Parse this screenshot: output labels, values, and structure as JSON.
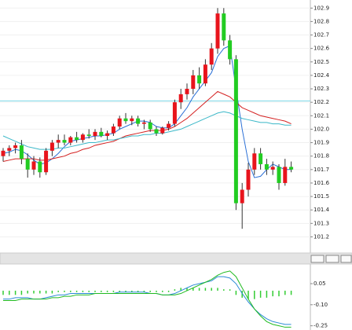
{
  "chart_data": [
    {
      "type": "candlestick",
      "up_color": "#e8141c",
      "down_color": "#22cc22",
      "wick_color": "#333333",
      "ylim": [
        101.08,
        102.96
      ],
      "yticks": [
        102.9,
        102.8,
        102.7,
        102.6,
        102.5,
        102.4,
        102.3,
        102.2,
        102.1,
        {
          "value": 102,
          "label": "102.0"
        },
        101.9,
        101.8,
        101.7,
        101.6,
        101.5,
        101.4,
        101.3,
        101.2
      ],
      "grid": true,
      "hline": {
        "value": 102.21,
        "color": "#7fd8e8"
      },
      "open": [
        101.8,
        101.84,
        101.86,
        101.88,
        101.78,
        101.7,
        101.76,
        101.68,
        101.84,
        101.9,
        101.92,
        101.9,
        101.94,
        101.92,
        101.96,
        101.95,
        101.98,
        101.95,
        101.97,
        102.02,
        102.08,
        102.06,
        102.08,
        102.04,
        102.05,
        102.0,
        101.97,
        102.01,
        102.04,
        102.2,
        102.26,
        102.3,
        102.4,
        102.34,
        102.48,
        102.6,
        102.86,
        102.66,
        102.52,
        101.45,
        101.55,
        101.7,
        101.82,
        101.74,
        101.7,
        101.72,
        101.6,
        101.72
      ],
      "high": [
        101.86,
        101.88,
        101.9,
        101.92,
        101.82,
        101.8,
        101.79,
        101.86,
        101.92,
        101.96,
        101.96,
        101.95,
        101.98,
        101.97,
        102.0,
        102.0,
        102.01,
        101.99,
        102.04,
        102.1,
        102.12,
        102.1,
        102.1,
        102.07,
        102.07,
        102.02,
        102.02,
        102.06,
        102.22,
        102.3,
        102.34,
        102.44,
        102.46,
        102.52,
        102.64,
        102.9,
        102.9,
        102.7,
        102.55,
        101.6,
        101.75,
        101.86,
        101.86,
        101.78,
        101.76,
        101.74,
        101.78,
        101.76
      ],
      "low": [
        101.76,
        101.8,
        101.82,
        101.74,
        101.64,
        101.66,
        101.64,
        101.66,
        101.8,
        101.86,
        101.88,
        101.88,
        101.9,
        101.9,
        101.93,
        101.92,
        101.94,
        101.92,
        101.95,
        102.0,
        102.04,
        102.03,
        102.02,
        102.0,
        101.98,
        101.95,
        101.96,
        101.99,
        102.02,
        102.15,
        102.22,
        102.26,
        102.3,
        102.32,
        102.44,
        102.56,
        102.62,
        102.48,
        101.4,
        101.26,
        101.5,
        101.66,
        101.7,
        101.66,
        101.66,
        101.55,
        101.58,
        101.68
      ],
      "close": [
        101.84,
        101.86,
        101.88,
        101.78,
        101.7,
        101.76,
        101.68,
        101.84,
        101.9,
        101.92,
        101.9,
        101.94,
        101.92,
        101.96,
        101.95,
        101.98,
        101.95,
        101.97,
        102.02,
        102.08,
        102.06,
        102.08,
        102.04,
        102.05,
        102.0,
        101.97,
        102.01,
        102.04,
        102.2,
        102.26,
        102.3,
        102.4,
        102.34,
        102.48,
        102.6,
        102.86,
        102.66,
        102.52,
        101.45,
        101.55,
        101.7,
        101.82,
        101.74,
        101.7,
        101.72,
        101.6,
        101.72,
        101.7
      ],
      "lines": [
        {
          "color": "#2a6fd6",
          "values": [
            101.82,
            101.83,
            101.85,
            101.84,
            101.81,
            101.77,
            101.74,
            101.75,
            101.78,
            101.82,
            101.87,
            101.91,
            101.92,
            101.93,
            101.94,
            101.95,
            101.95,
            101.96,
            101.97,
            102.0,
            102.02,
            102.04,
            102.06,
            102.06,
            102.05,
            102.02,
            102.01,
            102.01,
            102.04,
            102.1,
            102.16,
            102.24,
            102.3,
            102.36,
            102.42,
            102.54,
            102.6,
            102.62,
            102.3,
            102.0,
            101.76,
            101.64,
            101.65,
            101.7,
            101.74,
            101.72,
            101.7,
            101.7
          ]
        },
        {
          "color": "#d42020",
          "values": [
            101.76,
            101.77,
            101.78,
            101.78,
            101.78,
            101.78,
            101.77,
            101.77,
            101.78,
            101.79,
            101.8,
            101.82,
            101.83,
            101.85,
            101.86,
            101.88,
            101.89,
            101.9,
            101.91,
            101.93,
            101.95,
            101.96,
            101.97,
            101.98,
            101.99,
            101.99,
            101.99,
            102.0,
            102.02,
            102.05,
            102.08,
            102.12,
            102.16,
            102.2,
            102.24,
            102.28,
            102.26,
            102.24,
            102.2,
            102.16,
            102.14,
            102.12,
            102.1,
            102.09,
            102.08,
            102.07,
            102.06,
            102.04
          ]
        },
        {
          "color": "#3bb8c8",
          "values": [
            101.95,
            101.93,
            101.91,
            101.89,
            101.87,
            101.86,
            101.85,
            101.85,
            101.85,
            101.86,
            101.86,
            101.87,
            101.88,
            101.89,
            101.9,
            101.9,
            101.91,
            101.92,
            101.92,
            101.93,
            101.94,
            101.95,
            101.95,
            101.96,
            101.96,
            101.97,
            101.97,
            101.98,
            101.99,
            102.0,
            102.02,
            102.04,
            102.06,
            102.08,
            102.1,
            102.12,
            102.13,
            102.12,
            102.1,
            102.08,
            102.07,
            102.06,
            102.05,
            102.05,
            102.04,
            102.04,
            102.03,
            102.03
          ]
        }
      ]
    },
    {
      "type": "macd",
      "ylim": [
        -0.28,
        0.19
      ],
      "yticks": [
        0.05,
        {
          "value": -0.1,
          "label": "-0.10"
        },
        -0.25
      ],
      "series": [
        {
          "color": "#2a8ad6",
          "values": [
            -0.06,
            -0.06,
            -0.05,
            -0.05,
            -0.05,
            -0.06,
            -0.06,
            -0.05,
            -0.04,
            -0.03,
            -0.03,
            -0.02,
            -0.02,
            -0.02,
            -0.02,
            -0.02,
            -0.02,
            -0.02,
            -0.02,
            -0.01,
            -0.01,
            -0.01,
            -0.01,
            -0.01,
            -0.02,
            -0.02,
            -0.03,
            -0.03,
            -0.02,
            0.0,
            0.02,
            0.04,
            0.05,
            0.06,
            0.07,
            0.1,
            0.1,
            0.09,
            0.05,
            -0.02,
            -0.08,
            -0.13,
            -0.17,
            -0.2,
            -0.22,
            -0.23,
            -0.24,
            -0.24
          ]
        },
        {
          "color": "#22bb22",
          "values": [
            -0.07,
            -0.07,
            -0.07,
            -0.06,
            -0.06,
            -0.06,
            -0.06,
            -0.06,
            -0.05,
            -0.05,
            -0.04,
            -0.04,
            -0.03,
            -0.03,
            -0.03,
            -0.02,
            -0.02,
            -0.02,
            -0.02,
            -0.02,
            -0.02,
            -0.02,
            -0.02,
            -0.02,
            -0.02,
            -0.02,
            -0.03,
            -0.03,
            -0.03,
            -0.02,
            0.0,
            0.02,
            0.04,
            0.06,
            0.08,
            0.11,
            0.13,
            0.14,
            0.1,
            0.02,
            -0.06,
            -0.13,
            -0.18,
            -0.22,
            -0.24,
            -0.25,
            -0.26,
            -0.26
          ]
        }
      ],
      "histogram": {
        "color": "#33cc33",
        "values": [
          -0.03,
          -0.03,
          -0.03,
          -0.03,
          -0.02,
          -0.02,
          -0.02,
          -0.02,
          -0.02,
          -0.01,
          -0.01,
          -0.01,
          -0.01,
          -0.01,
          -0.01,
          -0.01,
          -0.01,
          -0.01,
          -0.01,
          -0.01,
          -0.01,
          -0.01,
          -0.01,
          -0.01,
          -0.01,
          -0.01,
          -0.01,
          -0.01,
          0.01,
          0.02,
          0.02,
          0.02,
          0.02,
          0.02,
          0.02,
          0.02,
          0.01,
          0.01,
          -0.03,
          -0.05,
          -0.06,
          -0.06,
          -0.05,
          -0.05,
          -0.04,
          -0.04,
          -0.03,
          -0.03
        ]
      }
    }
  ]
}
